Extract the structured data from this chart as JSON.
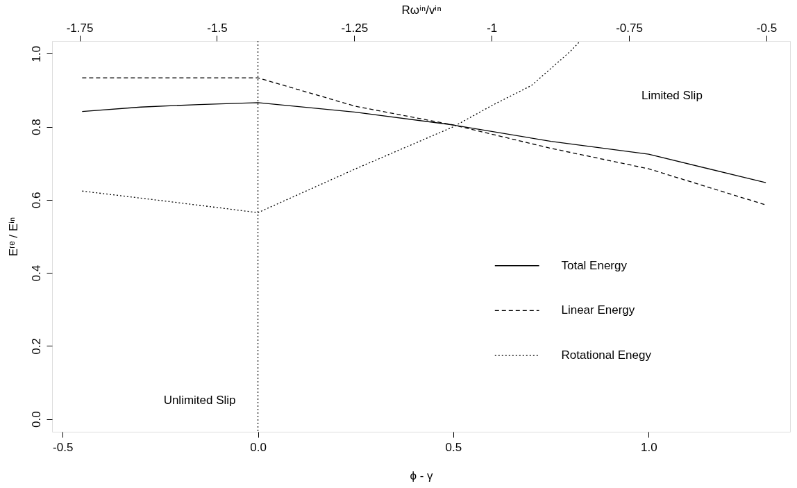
{
  "chart_data": {
    "type": "line",
    "xlabel": "ϕ - γ",
    "ylabel": "Eʳᵉ / Eⁱⁿ",
    "x2label": "Rωⁱⁿ/vⁱⁿ",
    "xlim": [
      -0.527,
      1.362
    ],
    "ylim": [
      -0.035,
      1.035
    ],
    "xticks": [
      -0.5,
      {
        "value": 0,
        "label": "0.0"
      },
      0.5,
      {
        "value": 1,
        "label": "1.0"
      }
    ],
    "yticks": [
      {
        "value": 0,
        "label": "0.0"
      },
      0.2,
      0.4,
      0.6,
      0.8,
      {
        "value": 1,
        "label": "1.0"
      }
    ],
    "x2lim": [
      -1.8,
      -0.457
    ],
    "x2ticks": [
      -1.75,
      -1.5,
      -1.25,
      -1,
      -0.75,
      -0.5
    ],
    "series": [
      {
        "name": "Total Energy",
        "color": "#000000",
        "line_style": "solid",
        "x": [
          -0.45,
          -0.3,
          -0.15,
          0,
          0.25,
          0.5,
          0.75,
          1.0,
          1.3
        ],
        "values": [
          0.842,
          0.854,
          0.861,
          0.866,
          0.84,
          0.805,
          0.76,
          0.725,
          0.647
        ]
      },
      {
        "name": "Linear Energy",
        "color": "#000000",
        "line_style": "dashed",
        "x": [
          -0.45,
          0,
          0.25,
          0.5,
          0.75,
          1.0,
          1.3
        ],
        "values": [
          0.934,
          0.934,
          0.856,
          0.805,
          0.741,
          0.685,
          0.586
        ]
      },
      {
        "name": "Rotational Enegy",
        "color": "#000000",
        "line_style": "dotted",
        "x": [
          -0.45,
          -0.225,
          0,
          0.25,
          0.5,
          0.6,
          0.7,
          0.8,
          0.825
        ],
        "values": [
          0.624,
          0.595,
          0.565,
          0.685,
          0.8,
          0.859,
          0.913,
          1.007,
          1.035
        ]
      }
    ],
    "ref_lines": [
      {
        "axis": "x",
        "value": 0,
        "label": null,
        "line_style": "dotted",
        "color": "#000000"
      }
    ],
    "annotations": [
      "Unlimited Slip",
      "Limited Slip"
    ],
    "legend": "bottom right",
    "grid": false
  }
}
